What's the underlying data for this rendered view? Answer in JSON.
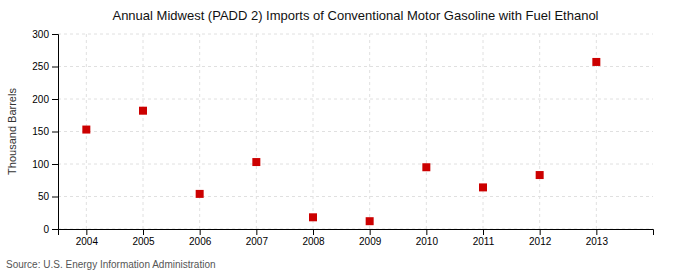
{
  "chart_data": {
    "type": "scatter",
    "title": "Annual Midwest (PADD 2) Imports of Conventional Motor Gasoline with Fuel Ethanol",
    "ylabel": "Thousand Barrels",
    "source": "Source: U.S. Energy Information Administration",
    "x": [
      2004,
      2005,
      2006,
      2007,
      2008,
      2009,
      2010,
      2011,
      2012,
      2013
    ],
    "values": [
      153,
      182,
      54,
      103,
      18,
      12,
      95,
      64,
      83,
      257
    ],
    "xlim": [
      2003.5,
      2014.0
    ],
    "ylim": [
      0,
      300
    ],
    "xticks": [
      2004,
      2005,
      2006,
      2007,
      2008,
      2009,
      2010,
      2011,
      2012,
      2013
    ],
    "yticks": [
      0,
      50,
      100,
      150,
      200,
      250,
      300
    ],
    "color": "#cc0000",
    "marker": "square",
    "grid": true
  }
}
